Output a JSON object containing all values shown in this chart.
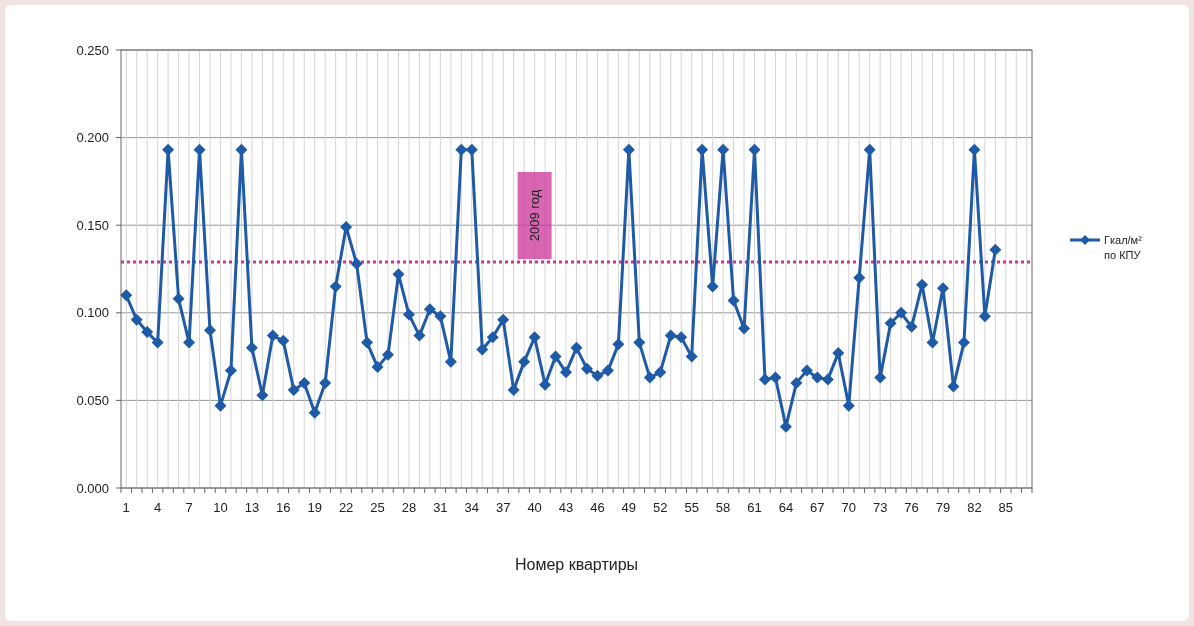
{
  "chart_data": {
    "type": "line",
    "xlabel": "Номер квартиры",
    "categories": [
      "1",
      null,
      null,
      "4",
      null,
      null,
      "7",
      null,
      null,
      "10",
      null,
      null,
      "13",
      null,
      null,
      "16",
      null,
      null,
      "19",
      null,
      null,
      "22",
      null,
      null,
      "25",
      null,
      null,
      "28",
      null,
      null,
      "31",
      null,
      null,
      "34",
      null,
      null,
      "37",
      null,
      null,
      "40",
      null,
      null,
      "43",
      null,
      null,
      "46",
      null,
      null,
      "49",
      null,
      null,
      "52",
      null,
      null,
      "55",
      null,
      null,
      "58",
      null,
      null,
      "61",
      null,
      null,
      "64",
      null,
      null,
      "67",
      null,
      null,
      "70",
      null,
      null,
      "73",
      null,
      null,
      "76",
      null,
      null,
      "79",
      null,
      null,
      "82",
      null,
      null,
      "85",
      null,
      null
    ],
    "series": [
      {
        "name": "Гкал/м² по КПУ",
        "color": "#1f5aa6",
        "values": [
          0.11,
          0.096,
          0.089,
          0.083,
          0.193,
          0.108,
          0.083,
          0.193,
          0.09,
          0.047,
          0.067,
          0.193,
          0.08,
          0.053,
          0.087,
          0.084,
          0.056,
          0.06,
          0.043,
          0.06,
          0.115,
          0.149,
          0.128,
          0.083,
          0.069,
          0.076,
          0.122,
          0.099,
          0.087,
          0.102,
          0.098,
          0.072,
          0.193,
          0.193,
          0.079,
          0.086,
          0.096,
          0.056,
          0.072,
          0.086,
          0.059,
          0.075,
          0.066,
          0.08,
          0.068,
          0.064,
          0.067,
          0.082,
          0.193,
          0.083,
          0.063,
          0.066,
          0.087,
          0.086,
          0.075,
          0.193,
          0.115,
          0.193,
          0.107,
          0.091,
          0.193,
          0.062,
          0.063,
          0.035,
          0.06,
          0.067,
          0.063,
          0.062,
          0.077,
          0.047,
          0.12,
          0.193,
          0.063,
          0.094,
          0.1,
          0.092,
          0.116,
          0.083,
          0.114,
          0.058,
          0.083,
          0.193,
          0.098,
          0.136,
          null,
          null,
          null
        ]
      }
    ],
    "ylim": [
      0,
      0.25
    ],
    "yticks": [
      {
        "value": 0,
        "label": "0.000"
      },
      {
        "value": 0.05,
        "label": "0.050"
      },
      {
        "value": 0.1,
        "label": "0.100"
      },
      {
        "value": 0.15,
        "label": "0.150"
      },
      {
        "value": 0.2,
        "label": "0.200"
      },
      {
        "value": 0.25,
        "label": "0.250"
      }
    ],
    "ref_lines": [
      {
        "axis": "y",
        "value": 0.129,
        "label": "2009 год",
        "color": "#cc3399",
        "line_style": "dotted"
      }
    ],
    "grid": true,
    "legend": "right",
    "marker": "diamond",
    "line_style": "solid"
  }
}
